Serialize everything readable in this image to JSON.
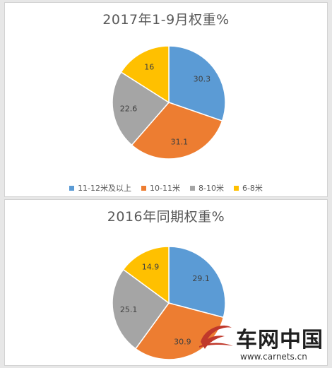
{
  "colors": {
    "blue": "#5b9bd5",
    "orange": "#ed7d31",
    "gray": "#a5a5a5",
    "yellow": "#ffc000",
    "label_text": "#404040"
  },
  "legend": [
    {
      "label": "11-12米及以上",
      "color": "#5b9bd5"
    },
    {
      "label": "10-11米",
      "color": "#ed7d31"
    },
    {
      "label": "8-10米",
      "color": "#a5a5a5"
    },
    {
      "label": "6-8米",
      "color": "#ffc000"
    }
  ],
  "chart_data": [
    {
      "type": "pie",
      "title": "2017年1-9月权重%",
      "categories": [
        "11-12米及以上",
        "10-11米",
        "8-10米",
        "6-8米"
      ],
      "values": [
        30.3,
        31.1,
        22.6,
        16
      ],
      "labels": [
        "30.3",
        "31.1",
        "22.6",
        "16"
      ],
      "legend_position": "bottom"
    },
    {
      "type": "pie",
      "title": "2016年同期权重%",
      "categories": [
        "11-12米及以上",
        "10-11米",
        "8-10米",
        "6-8米"
      ],
      "values": [
        29.1,
        30.9,
        25.1,
        14.9
      ],
      "labels": [
        "29.1",
        "30.9",
        "25.1",
        "14.9"
      ]
    }
  ],
  "watermark": {
    "brand": "车网中国",
    "url": "www.carnets.cn"
  }
}
